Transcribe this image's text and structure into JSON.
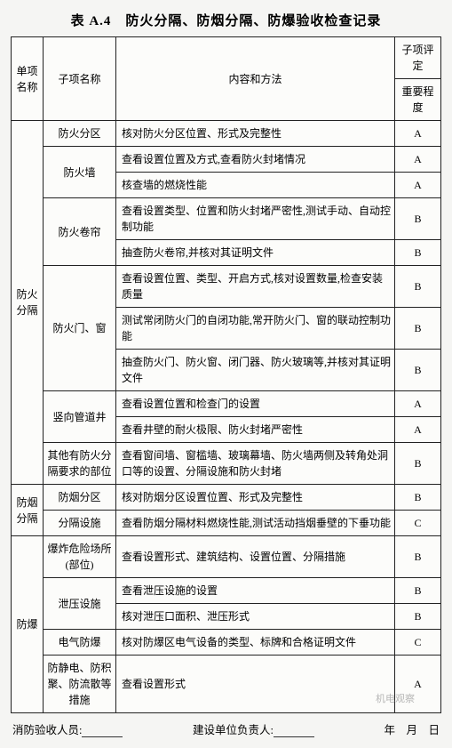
{
  "title": "表 A.4　防火分隔、防烟分隔、防爆验收检查记录",
  "header": {
    "c1": "单项名称",
    "c2": "子项名称",
    "c3": "内容和方法",
    "c4top": "子项评定",
    "c4": "重要程度"
  },
  "groups": [
    {
      "name": "防火分隔",
      "rows": [
        {
          "sub": "防火分区",
          "span": 1,
          "content": "核对防火分区位置、形式及完整性",
          "grade": "A"
        },
        {
          "sub": "防火墙",
          "span": 2,
          "content": "查看设置位置及方式,查看防火封堵情况",
          "grade": "A"
        },
        {
          "content": "核查墙的燃烧性能",
          "grade": "A"
        },
        {
          "sub": "防火卷帘",
          "span": 2,
          "content": "查看设置类型、位置和防火封堵严密性,测试手动、自动控制功能",
          "grade": "B"
        },
        {
          "content": "抽查防火卷帘,并核对其证明文件",
          "grade": "B"
        },
        {
          "sub": "防火门、窗",
          "span": 3,
          "content": "查看设置位置、类型、开启方式,核对设置数量,检查安装质量",
          "grade": "B"
        },
        {
          "content": "测试常闭防火门的自闭功能,常开防火门、窗的联动控制功能",
          "grade": "B"
        },
        {
          "content": "抽查防火门、防火窗、闭门器、防火玻璃等,并核对其证明文件",
          "grade": "B"
        },
        {
          "sub": "竖向管道井",
          "span": 2,
          "content": "查看设置位置和检查门的设置",
          "grade": "A"
        },
        {
          "content": "查看井壁的耐火极限、防火封堵严密性",
          "grade": "A"
        },
        {
          "sub": "其他有防火分隔要求的部位",
          "span": 1,
          "content": "查看窗间墙、窗槛墙、玻璃幕墙、防火墙两侧及转角处洞口等的设置、分隔设施和防火封堵",
          "grade": "B"
        }
      ]
    },
    {
      "name": "防烟分隔",
      "rows": [
        {
          "sub": "防烟分区",
          "span": 1,
          "content": "核对防烟分区设置位置、形式及完整性",
          "grade": "B"
        },
        {
          "sub": "分隔设施",
          "span": 1,
          "content": "查看防烟分隔材料燃烧性能,测试活动挡烟垂壁的下垂功能",
          "grade": "C"
        }
      ]
    },
    {
      "name": "防爆",
      "rows": [
        {
          "sub": "爆炸危险场所(部位)",
          "span": 1,
          "content": "查看设置形式、建筑结构、设置位置、分隔措施",
          "grade": "B"
        },
        {
          "sub": "泄压设施",
          "span": 2,
          "content": "查看泄压设施的设置",
          "grade": "B"
        },
        {
          "content": "核对泄压口面积、泄压形式",
          "grade": "B"
        },
        {
          "sub": "电气防爆",
          "span": 1,
          "content": "核对防爆区电气设备的类型、标牌和合格证明文件",
          "grade": "C"
        },
        {
          "sub": "防静电、防积聚、防流散等措施",
          "span": 1,
          "content": "查看设置形式",
          "grade": "A"
        }
      ]
    }
  ],
  "footer": {
    "left": "消防验收人员:",
    "mid": "建设单位负责人:",
    "right": "年　月　日"
  },
  "watermark": "机电观察"
}
